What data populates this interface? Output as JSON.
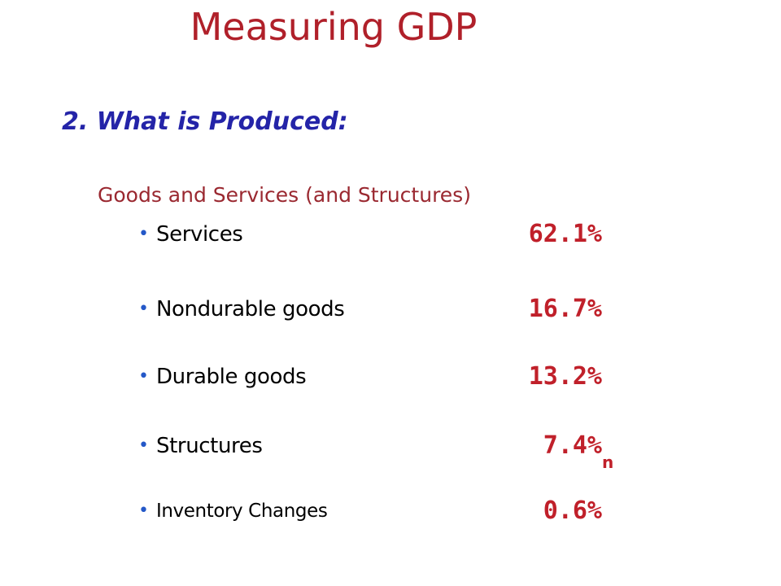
{
  "title": "Measuring GDP",
  "section": {
    "heading": "2. What is Produced:",
    "subheading": "Goods and Services (and Structures)"
  },
  "items": [
    {
      "label": "Services",
      "value": "62.1%"
    },
    {
      "label": "Nondurable goods",
      "value": "16.7%"
    },
    {
      "label": "Durable goods",
      "value": "13.2%"
    },
    {
      "label": "Structures",
      "value": "7.4%"
    },
    {
      "label": "Inventory Changes",
      "value": "0.6%"
    }
  ],
  "footnote_marker": "n",
  "colors": {
    "title": "#b0202a",
    "heading": "#2424a8",
    "subheading": "#9a2830",
    "bullet": "#2458c8",
    "value": "#c0202a"
  }
}
